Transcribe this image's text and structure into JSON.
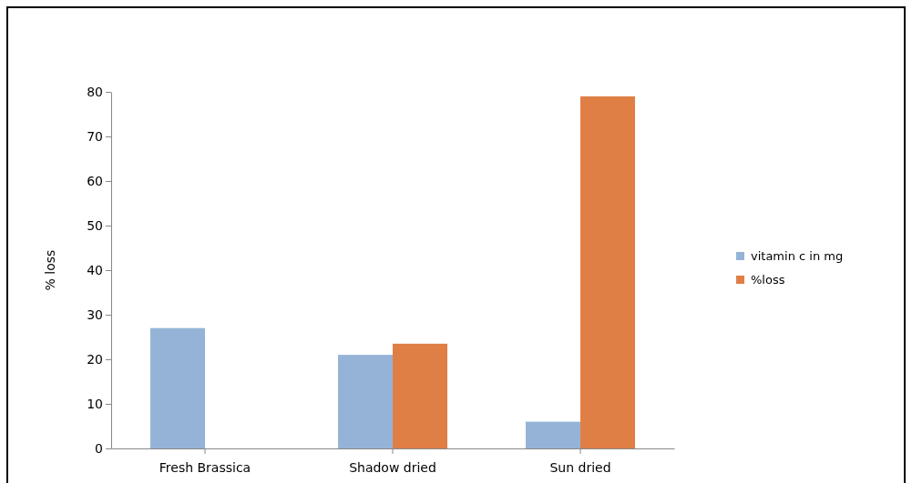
{
  "chart_data": {
    "type": "bar",
    "ylabel": "% loss",
    "categories": [
      "Fresh Brassica",
      "Shadow dried",
      "Sun dried"
    ],
    "series": [
      {
        "name": "vitamin c in mg",
        "color": "#95b3d7",
        "values": [
          27,
          21,
          6
        ]
      },
      {
        "name": "%loss",
        "color": "#e07f45",
        "values": [
          null,
          23.5,
          79
        ]
      }
    ],
    "ylim": [
      0,
      80
    ],
    "yticks": [
      0,
      10,
      20,
      30,
      40,
      50,
      60,
      70,
      80
    ],
    "grid": false,
    "legend": "right"
  }
}
